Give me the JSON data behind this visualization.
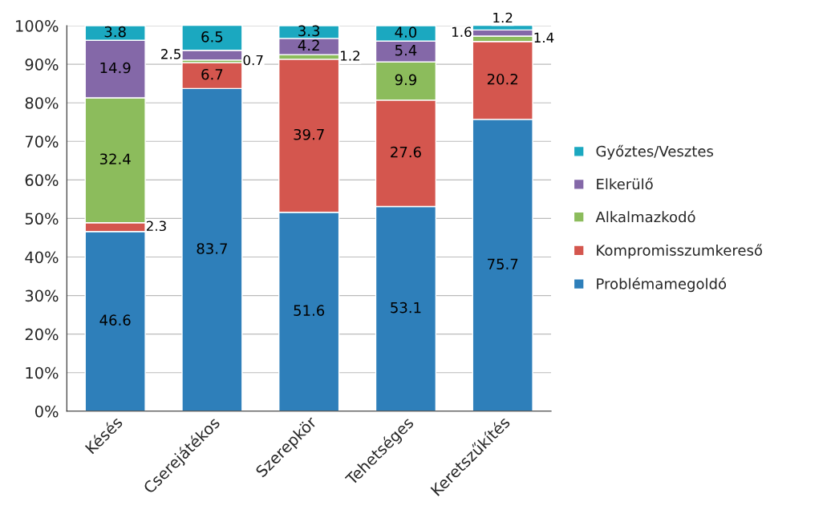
{
  "chart_data": {
    "type": "bar",
    "stacked": true,
    "categories": [
      "Késés",
      "Cserejátékos",
      "Szerepkör",
      "Tehetséges",
      "Keretszűkítés"
    ],
    "series": [
      {
        "name": "Problémamegoldó",
        "color": "#2e7fba",
        "values": [
          46.6,
          83.7,
          51.6,
          53.1,
          75.7
        ],
        "value_labels": [
          "46.6",
          "83.7",
          "51.6",
          "53.1",
          "75.7"
        ]
      },
      {
        "name": "Kompromisszumkereső",
        "color": "#d4564e",
        "values": [
          2.3,
          6.7,
          39.7,
          27.6,
          20.2
        ],
        "value_labels": [
          "2.3",
          "6.7",
          "39.7",
          "27.6",
          "20.2"
        ]
      },
      {
        "name": "Alkalmazkodó",
        "color": "#8cbc5c",
        "values": [
          32.4,
          0.7,
          1.2,
          9.9,
          1.4
        ],
        "value_labels": [
          "32.4",
          "0.7",
          "1.2",
          "9.9",
          "1.4"
        ]
      },
      {
        "name": "Elkerülő",
        "color": "#8468a8",
        "values": [
          14.9,
          2.5,
          4.2,
          5.4,
          1.6
        ],
        "value_labels": [
          "14.9",
          "2.5",
          "4.2",
          "5.4",
          "1.6"
        ]
      },
      {
        "name": "Győztes/Vesztes",
        "color": "#1ba8c0",
        "values": [
          3.8,
          6.5,
          3.3,
          4.0,
          1.2
        ],
        "value_labels": [
          "3.8",
          "6.5",
          "3.3",
          "4.0",
          "1.2"
        ]
      }
    ],
    "ylim": [
      0,
      100
    ],
    "yticks": [
      {
        "value": 0,
        "label": "0%"
      },
      {
        "value": 10,
        "label": "10%"
      },
      {
        "value": 20,
        "label": "20%"
      },
      {
        "value": 30,
        "label": "30%"
      },
      {
        "value": 40,
        "label": "40%"
      },
      {
        "value": 50,
        "label": "50%"
      },
      {
        "value": 60,
        "label": "60%"
      },
      {
        "value": 70,
        "label": "70%"
      },
      {
        "value": 80,
        "label": "80%"
      },
      {
        "value": 90,
        "label": "90%"
      },
      {
        "value": 100,
        "label": "100%"
      }
    ],
    "grid": "y",
    "legend": "right"
  }
}
